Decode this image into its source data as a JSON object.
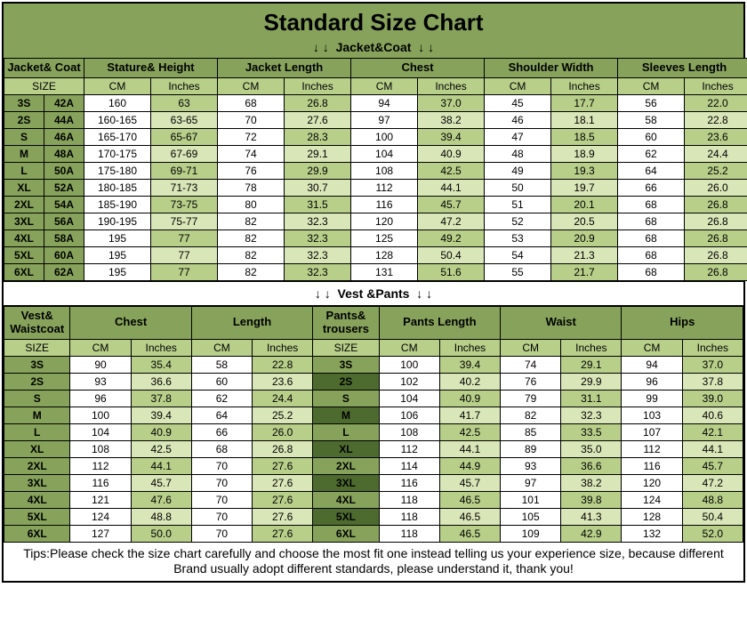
{
  "title": "Standard Size Chart",
  "sections": {
    "jacket_label": "Jacket&Coat",
    "vest_label": "Vest &Pants"
  },
  "arrow": "↓",
  "headers1": {
    "size_group": "Jacket& Coat",
    "stature": "Stature& Height",
    "jlen": "Jacket Length",
    "chest": "Chest",
    "shoulder": "Shoulder Width",
    "sleeves": "Sleeves Length",
    "size": "SIZE",
    "cm": "CM",
    "in": "Inches"
  },
  "jacket_rows": [
    {
      "s": "3S",
      "c": "42A",
      "stc": "160",
      "sti": "63",
      "jlc": "68",
      "jli": "26.8",
      "chc": "94",
      "chi": "37.0",
      "shc": "45",
      "shi": "17.7",
      "slc": "56",
      "sli": "22.0"
    },
    {
      "s": "2S",
      "c": "44A",
      "stc": "160-165",
      "sti": "63-65",
      "jlc": "70",
      "jli": "27.6",
      "chc": "97",
      "chi": "38.2",
      "shc": "46",
      "shi": "18.1",
      "slc": "58",
      "sli": "22.8"
    },
    {
      "s": "S",
      "c": "46A",
      "stc": "165-170",
      "sti": "65-67",
      "jlc": "72",
      "jli": "28.3",
      "chc": "100",
      "chi": "39.4",
      "shc": "47",
      "shi": "18.5",
      "slc": "60",
      "sli": "23.6"
    },
    {
      "s": "M",
      "c": "48A",
      "stc": "170-175",
      "sti": "67-69",
      "jlc": "74",
      "jli": "29.1",
      "chc": "104",
      "chi": "40.9",
      "shc": "48",
      "shi": "18.9",
      "slc": "62",
      "sli": "24.4"
    },
    {
      "s": "L",
      "c": "50A",
      "stc": "175-180",
      "sti": "69-71",
      "jlc": "76",
      "jli": "29.9",
      "chc": "108",
      "chi": "42.5",
      "shc": "49",
      "shi": "19.3",
      "slc": "64",
      "sli": "25.2"
    },
    {
      "s": "XL",
      "c": "52A",
      "stc": "180-185",
      "sti": "71-73",
      "jlc": "78",
      "jli": "30.7",
      "chc": "112",
      "chi": "44.1",
      "shc": "50",
      "shi": "19.7",
      "slc": "66",
      "sli": "26.0"
    },
    {
      "s": "2XL",
      "c": "54A",
      "stc": "185-190",
      "sti": "73-75",
      "jlc": "80",
      "jli": "31.5",
      "chc": "116",
      "chi": "45.7",
      "shc": "51",
      "shi": "20.1",
      "slc": "68",
      "sli": "26.8"
    },
    {
      "s": "3XL",
      "c": "56A",
      "stc": "190-195",
      "sti": "75-77",
      "jlc": "82",
      "jli": "32.3",
      "chc": "120",
      "chi": "47.2",
      "shc": "52",
      "shi": "20.5",
      "slc": "68",
      "sli": "26.8"
    },
    {
      "s": "4XL",
      "c": "58A",
      "stc": "195",
      "sti": "77",
      "jlc": "82",
      "jli": "32.3",
      "chc": "125",
      "chi": "49.2",
      "shc": "53",
      "shi": "20.9",
      "slc": "68",
      "sli": "26.8"
    },
    {
      "s": "5XL",
      "c": "60A",
      "stc": "195",
      "sti": "77",
      "jlc": "82",
      "jli": "32.3",
      "chc": "128",
      "chi": "50.4",
      "shc": "54",
      "shi": "21.3",
      "slc": "68",
      "sli": "26.8"
    },
    {
      "s": "6XL",
      "c": "62A",
      "stc": "195",
      "sti": "77",
      "jlc": "82",
      "jli": "32.3",
      "chc": "131",
      "chi": "51.6",
      "shc": "55",
      "shi": "21.7",
      "slc": "68",
      "sli": "26.8"
    }
  ],
  "headers2": {
    "vest": "Vest& Waistcoat",
    "chest": "Chest",
    "length": "Length",
    "pants": "Pants& trousers",
    "plen": "Pants Length",
    "waist": "Waist",
    "hips": "Hips",
    "size": "SIZE",
    "cm": "CM",
    "in": "Inches"
  },
  "vest_rows": [
    {
      "s": "3S",
      "chc": "90",
      "chi": "35.4",
      "lc": "58",
      "li": "22.8",
      "ps": "3S",
      "plc": "100",
      "pli": "39.4",
      "wc": "74",
      "wi": "29.1",
      "hc": "94",
      "hi": "37.0"
    },
    {
      "s": "2S",
      "chc": "93",
      "chi": "36.6",
      "lc": "60",
      "li": "23.6",
      "ps": "2S",
      "plc": "102",
      "pli": "40.2",
      "wc": "76",
      "wi": "29.9",
      "hc": "96",
      "hi": "37.8"
    },
    {
      "s": "S",
      "chc": "96",
      "chi": "37.8",
      "lc": "62",
      "li": "24.4",
      "ps": "S",
      "plc": "104",
      "pli": "40.9",
      "wc": "79",
      "wi": "31.1",
      "hc": "99",
      "hi": "39.0"
    },
    {
      "s": "M",
      "chc": "100",
      "chi": "39.4",
      "lc": "64",
      "li": "25.2",
      "ps": "M",
      "plc": "106",
      "pli": "41.7",
      "wc": "82",
      "wi": "32.3",
      "hc": "103",
      "hi": "40.6"
    },
    {
      "s": "L",
      "chc": "104",
      "chi": "40.9",
      "lc": "66",
      "li": "26.0",
      "ps": "L",
      "plc": "108",
      "pli": "42.5",
      "wc": "85",
      "wi": "33.5",
      "hc": "107",
      "hi": "42.1"
    },
    {
      "s": "XL",
      "chc": "108",
      "chi": "42.5",
      "lc": "68",
      "li": "26.8",
      "ps": "XL",
      "plc": "112",
      "pli": "44.1",
      "wc": "89",
      "wi": "35.0",
      "hc": "112",
      "hi": "44.1"
    },
    {
      "s": "2XL",
      "chc": "112",
      "chi": "44.1",
      "lc": "70",
      "li": "27.6",
      "ps": "2XL",
      "plc": "114",
      "pli": "44.9",
      "wc": "93",
      "wi": "36.6",
      "hc": "116",
      "hi": "45.7"
    },
    {
      "s": "3XL",
      "chc": "116",
      "chi": "45.7",
      "lc": "70",
      "li": "27.6",
      "ps": "3XL",
      "plc": "116",
      "pli": "45.7",
      "wc": "97",
      "wi": "38.2",
      "hc": "120",
      "hi": "47.2"
    },
    {
      "s": "4XL",
      "chc": "121",
      "chi": "47.6",
      "lc": "70",
      "li": "27.6",
      "ps": "4XL",
      "plc": "118",
      "pli": "46.5",
      "wc": "101",
      "wi": "39.8",
      "hc": "124",
      "hi": "48.8"
    },
    {
      "s": "5XL",
      "chc": "124",
      "chi": "48.8",
      "lc": "70",
      "li": "27.6",
      "ps": "5XL",
      "plc": "118",
      "pli": "46.5",
      "wc": "105",
      "wi": "41.3",
      "hc": "128",
      "hi": "50.4"
    },
    {
      "s": "6XL",
      "chc": "127",
      "chi": "50.0",
      "lc": "70",
      "li": "27.6",
      "ps": "6XL",
      "plc": "118",
      "pli": "46.5",
      "wc": "109",
      "wi": "42.9",
      "hc": "132",
      "hi": "52.0"
    }
  ],
  "tips": "Tips:Please check the size chart carefully and choose the most fit one instead telling us your experience size, because different Brand usually adopt different standards, please understand it, thank you!",
  "colors": {
    "dark": "#4e6b2f",
    "mid": "#87a35b",
    "light": "#b8cf8a",
    "pale": "#d9e6b8",
    "white": "#ffffff"
  }
}
